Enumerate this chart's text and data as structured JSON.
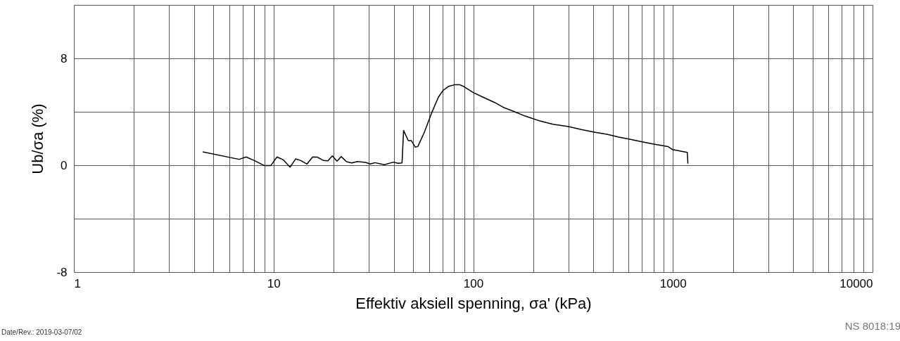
{
  "chart_data": {
    "type": "line",
    "xlabel": "Effektiv aksiell spenning, σa'   (kPa)",
    "ylabel": "Ub/σa  (%)",
    "log": "x",
    "grid": true,
    "marker": "none",
    "line_style": "solid",
    "xlim": [
      1,
      10000
    ],
    "xticks": [
      1,
      {
        "value": 2,
        "label": null
      },
      {
        "value": 3,
        "label": null
      },
      {
        "value": 4,
        "label": null
      },
      {
        "value": 5,
        "label": null
      },
      {
        "value": 6,
        "label": null
      },
      {
        "value": 7,
        "label": null
      },
      {
        "value": 8,
        "label": null
      },
      {
        "value": 9,
        "label": null
      },
      10,
      {
        "value": 20,
        "label": null
      },
      {
        "value": 30,
        "label": null
      },
      {
        "value": 40,
        "label": null
      },
      {
        "value": 50,
        "label": null
      },
      {
        "value": 60,
        "label": null
      },
      {
        "value": 70,
        "label": null
      },
      {
        "value": 80,
        "label": null
      },
      {
        "value": 90,
        "label": null
      },
      100,
      {
        "value": 200,
        "label": null
      },
      {
        "value": 300,
        "label": null
      },
      {
        "value": 400,
        "label": null
      },
      {
        "value": 500,
        "label": null
      },
      {
        "value": 600,
        "label": null
      },
      {
        "value": 700,
        "label": null
      },
      {
        "value": 800,
        "label": null
      },
      {
        "value": 900,
        "label": null
      },
      1000,
      {
        "value": 2000,
        "label": null
      },
      {
        "value": 3000,
        "label": null
      },
      {
        "value": 4000,
        "label": null
      },
      {
        "value": 5000,
        "label": null
      },
      {
        "value": 6000,
        "label": null
      },
      {
        "value": 7000,
        "label": null
      },
      {
        "value": 8000,
        "label": null
      },
      {
        "value": 9000,
        "label": null
      },
      10000
    ],
    "ylim": [
      -8,
      12
    ],
    "yticks": [
      -8,
      {
        "value": -4,
        "label": null
      },
      0,
      {
        "value": 4,
        "label": null
      },
      8,
      {
        "value": 12,
        "label": null
      }
    ],
    "series": [
      {
        "color": "#000000",
        "x": [
          4.42,
          6.72,
          7.29,
          8.01,
          9.0,
          9.68,
          10.4,
          11.2,
          12.1,
          12.9,
          13.7,
          14.7,
          15.7,
          16.6,
          17.8,
          18.7,
          19.7,
          20.8,
          21.8,
          23.2,
          24.6,
          26.3,
          28.9,
          30.5,
          32.2,
          35.9,
          39.8,
          42.0,
          44.0,
          44.8,
          47.3,
          49.0,
          51.3,
          52.8,
          56.9,
          61.7,
          66.9,
          70.6,
          75.5,
          80.4,
          85.8,
          90.0,
          100,
          112,
          128,
          143,
          159,
          182,
          214,
          251,
          300,
          348,
          409,
          468,
          536,
          614,
          702,
          804,
          945,
          997,
          1181,
          1189
        ],
        "values": [
          1.0,
          0.44,
          0.62,
          0.35,
          -0.03,
          -0.03,
          0.62,
          0.4,
          -0.14,
          0.47,
          0.35,
          0.09,
          0.62,
          0.6,
          0.35,
          0.33,
          0.7,
          0.3,
          0.65,
          0.26,
          0.17,
          0.28,
          0.21,
          0.09,
          0.19,
          0.04,
          0.23,
          0.14,
          0.17,
          2.6,
          1.84,
          1.84,
          1.35,
          1.4,
          2.46,
          3.86,
          5.09,
          5.6,
          5.91,
          6.02,
          6.02,
          5.88,
          5.44,
          5.09,
          4.7,
          4.3,
          4.04,
          3.68,
          3.33,
          3.07,
          2.9,
          2.67,
          2.46,
          2.32,
          2.1,
          1.93,
          1.75,
          1.58,
          1.4,
          1.17,
          0.96,
          0.12
        ]
      }
    ],
    "annotations": [
      "Date/Rev.: 2019-03-07/02",
      "NS 8018:19"
    ]
  }
}
